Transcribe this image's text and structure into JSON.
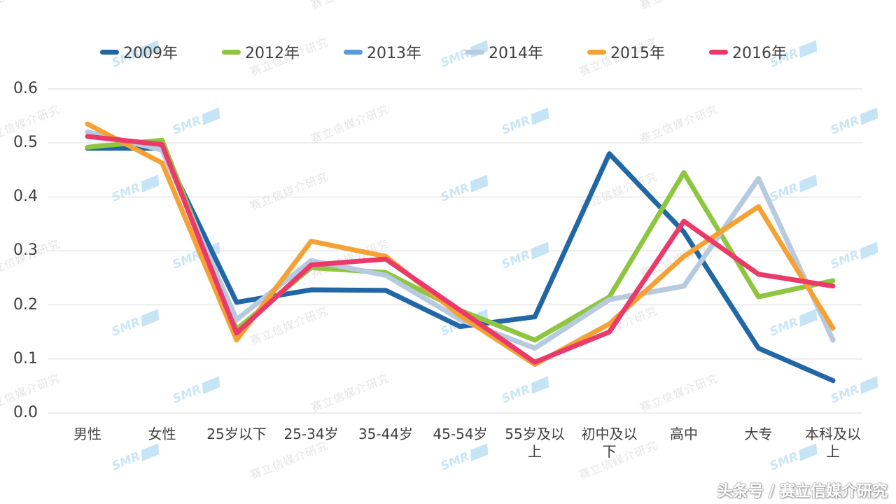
{
  "watermark": {
    "text": "赛立信媒介研究",
    "logo": "SMR"
  },
  "footer": {
    "credit": "头条号 / 赛立信媒介研究"
  },
  "chart_data": {
    "type": "line",
    "categories": [
      "男性",
      "女性",
      "25岁以下",
      "25-34岁",
      "35-44岁",
      "45-54岁",
      "55岁及以上",
      "初中及以下",
      "高中",
      "大专",
      "本科及以上"
    ],
    "series": [
      {
        "name": "2009年",
        "color": "#2166A5",
        "values": [
          0.49,
          0.49,
          0.205,
          0.228,
          0.227,
          0.16,
          0.178,
          0.48,
          0.335,
          0.12,
          0.06
        ]
      },
      {
        "name": "2012年",
        "color": "#8EC640",
        "values": [
          0.492,
          0.505,
          0.155,
          0.269,
          0.26,
          0.19,
          0.135,
          0.215,
          0.445,
          0.215,
          0.245
        ]
      },
      {
        "name": "2013年",
        "color": "#5B9BD5",
        "values": [
          0.52,
          0.487,
          0.173,
          0.282,
          0.255,
          0.173,
          0.12,
          0.21,
          0.235,
          0.434,
          0.135
        ]
      },
      {
        "name": "2014年",
        "color": "#B7CADF",
        "values": [
          0.52,
          0.487,
          0.173,
          0.282,
          0.255,
          0.173,
          0.12,
          0.21,
          0.235,
          0.434,
          0.135
        ]
      },
      {
        "name": "2015年",
        "color": "#F5A133",
        "values": [
          0.535,
          0.463,
          0.135,
          0.318,
          0.29,
          0.18,
          0.09,
          0.165,
          0.29,
          0.382,
          0.157
        ]
      },
      {
        "name": "2016年",
        "color": "#EA3A6A",
        "values": [
          0.512,
          0.497,
          0.148,
          0.274,
          0.285,
          0.19,
          0.094,
          0.15,
          0.355,
          0.257,
          0.235
        ]
      }
    ],
    "title": "",
    "xlabel": "",
    "ylabel": "",
    "ylim": [
      0,
      0.6
    ],
    "yticks": [
      "0.0",
      "0.1",
      "0.2",
      "0.3",
      "0.4",
      "0.5",
      "0.6"
    ],
    "grid": "horizontal",
    "legend_position": "top"
  }
}
